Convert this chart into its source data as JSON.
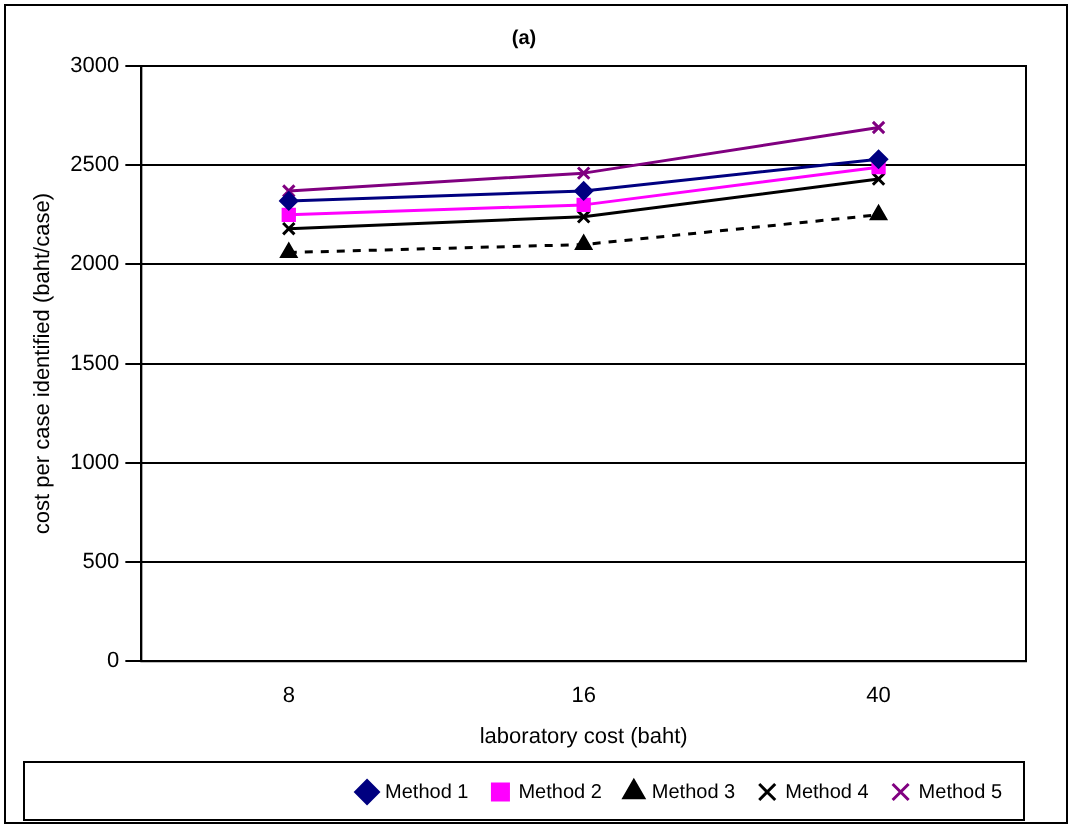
{
  "chart_data": {
    "type": "line",
    "title": "(a)",
    "xlabel": "laboratory cost (baht)",
    "ylabel": "cost per case identified (baht/case)",
    "categories": [
      "8",
      "16",
      "40"
    ],
    "ylim": [
      0,
      3000
    ],
    "yticks": [
      0,
      500,
      1000,
      1500,
      2000,
      2500,
      3000
    ],
    "grid": "y",
    "legend": "bottom",
    "series": [
      {
        "name": "Method 1",
        "color": "#000080",
        "marker": "diamond",
        "line_style": "solid",
        "values": [
          2320,
          2370,
          2530
        ]
      },
      {
        "name": "Method 2",
        "color": "#ff00ff",
        "marker": "square",
        "line_style": "solid",
        "values": [
          2250,
          2300,
          2490
        ]
      },
      {
        "name": "Method 3",
        "color": "#000000",
        "marker": "triangle",
        "line_style": "dashed",
        "values": [
          2060,
          2100,
          2250
        ]
      },
      {
        "name": "Method 4",
        "color": "#000000",
        "marker": "cross",
        "line_style": "solid",
        "values": [
          2180,
          2240,
          2430
        ]
      },
      {
        "name": "Method 5",
        "color": "#800080",
        "marker": "cross",
        "line_style": "solid",
        "values": [
          2370,
          2460,
          2690
        ]
      }
    ]
  }
}
